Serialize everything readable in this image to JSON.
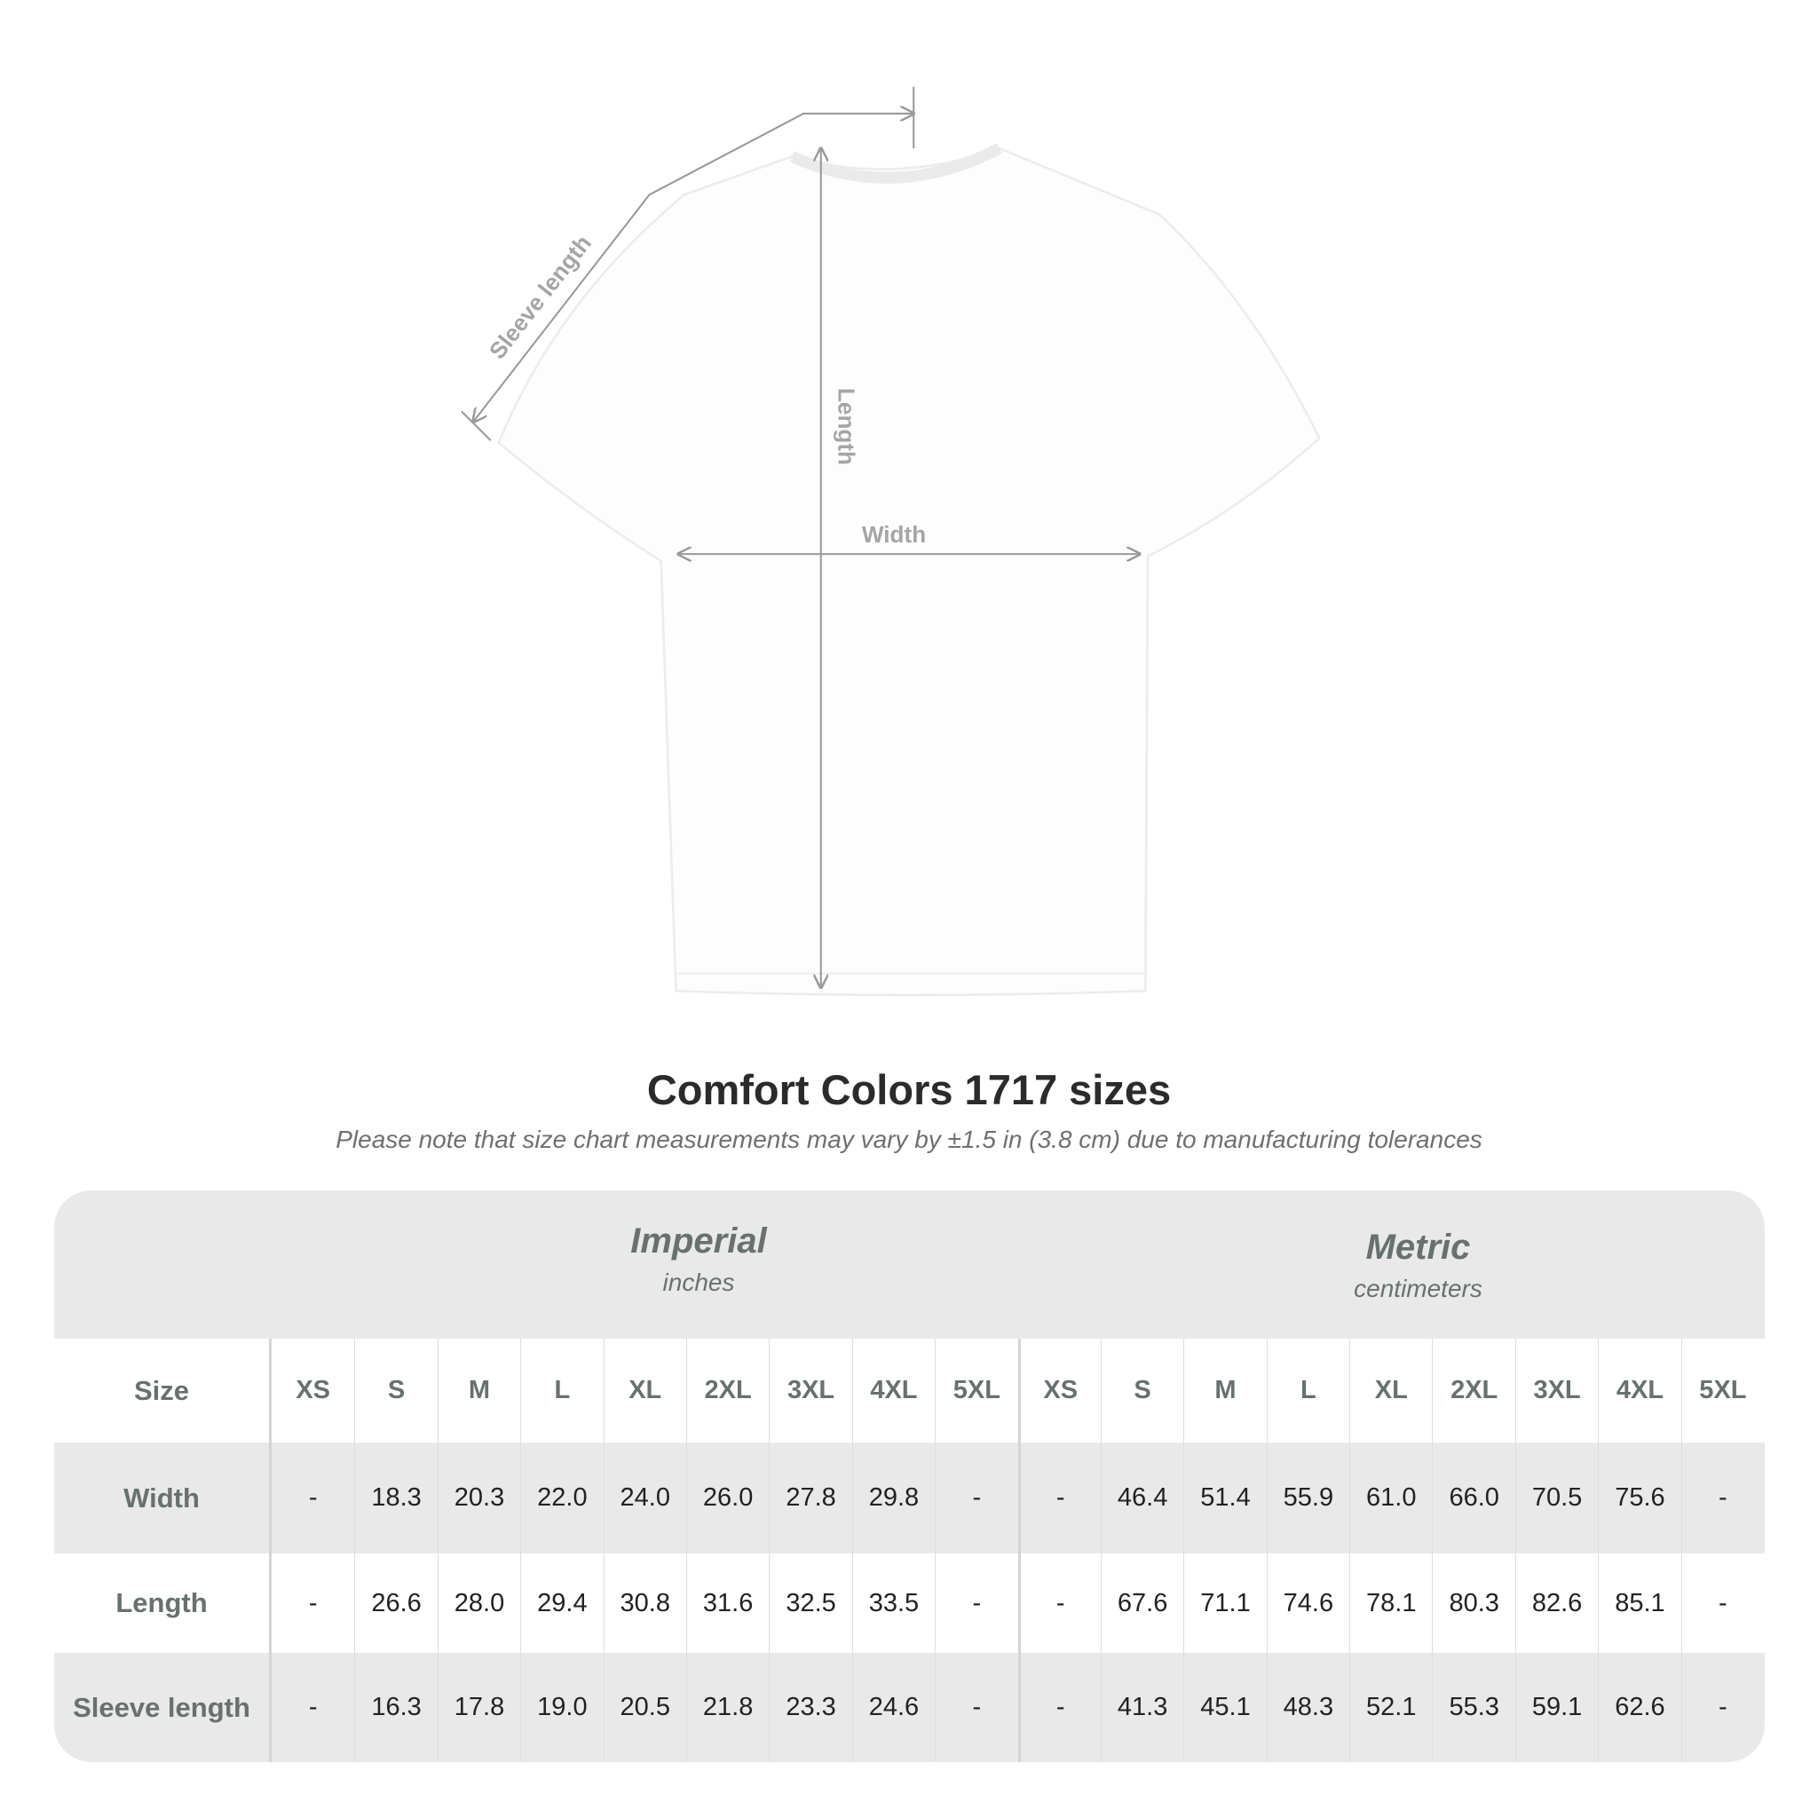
{
  "diagram": {
    "labels": {
      "sleeve": "Sleeve length",
      "length": "Length",
      "width": "Width"
    },
    "line_color": "#9a9a9a"
  },
  "title": "Comfort Colors 1717 sizes",
  "note": "Please note that size chart measurements may vary by ±1.5 in (3.8 cm) due to manufacturing tolerances",
  "table": {
    "imperial": {
      "title": "Imperial",
      "unit": "inches"
    },
    "metric": {
      "title": "Metric",
      "unit": "centimeters"
    },
    "size_label": "Size",
    "sizes": [
      "XS",
      "S",
      "M",
      "L",
      "XL",
      "2XL",
      "3XL",
      "4XL",
      "5XL"
    ],
    "rows": [
      {
        "label": "Width",
        "imperial": [
          "-",
          "18.3",
          "20.3",
          "22.0",
          "24.0",
          "26.0",
          "27.8",
          "29.8",
          "-"
        ],
        "metric": [
          "-",
          "46.4",
          "51.4",
          "55.9",
          "61.0",
          "66.0",
          "70.5",
          "75.6",
          "-"
        ]
      },
      {
        "label": "Length",
        "imperial": [
          "-",
          "26.6",
          "28.0",
          "29.4",
          "30.8",
          "31.6",
          "32.5",
          "33.5",
          "-"
        ],
        "metric": [
          "-",
          "67.6",
          "71.1",
          "74.6",
          "78.1",
          "80.3",
          "82.6",
          "85.1",
          "-"
        ]
      },
      {
        "label": "Sleeve length",
        "imperial": [
          "-",
          "16.3",
          "17.8",
          "19.0",
          "20.5",
          "21.8",
          "23.3",
          "24.6",
          "-"
        ],
        "metric": [
          "-",
          "41.3",
          "45.1",
          "48.3",
          "52.1",
          "55.3",
          "59.1",
          "62.6",
          "-"
        ]
      }
    ]
  }
}
